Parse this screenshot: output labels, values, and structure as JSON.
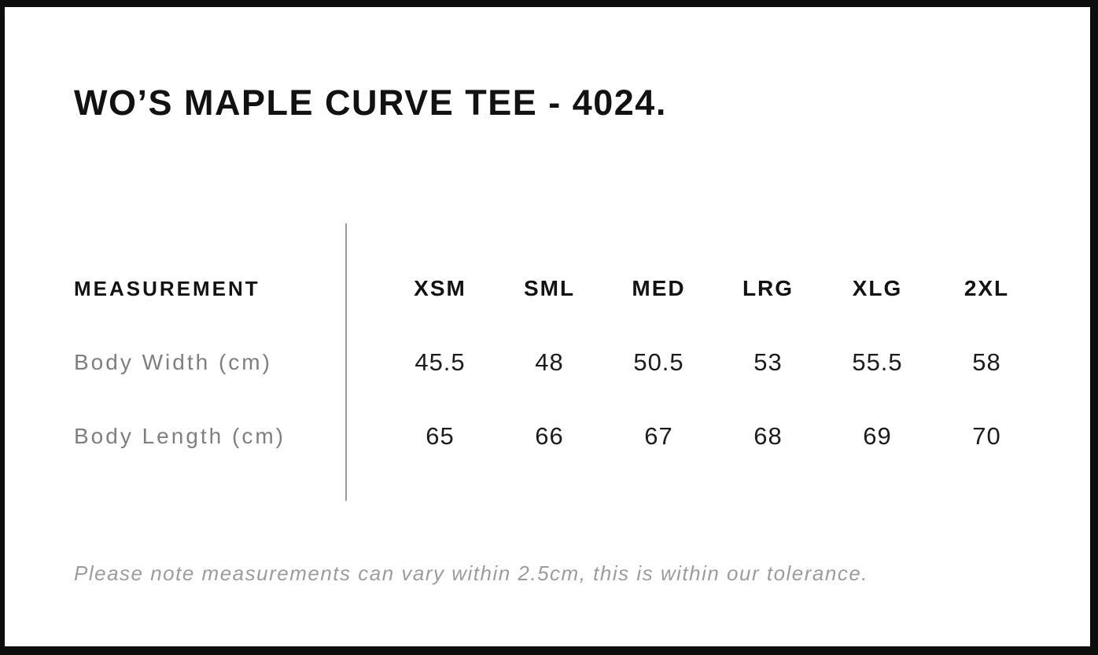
{
  "page": {
    "title": "WO’S MAPLE CURVE TEE - 4024.",
    "note": "Please note measurements can vary within 2.5cm, this is within our tolerance."
  },
  "size_chart": {
    "header_label": "MEASUREMENT",
    "sizes": [
      "XSM",
      "SML",
      "MED",
      "LRG",
      "XLG",
      "2XL"
    ],
    "rows": [
      {
        "label": "Body Width (cm)",
        "values": [
          "45.5",
          "48",
          "50.5",
          "53",
          "55.5",
          "58"
        ]
      },
      {
        "label": "Body Length (cm)",
        "values": [
          "65",
          "66",
          "67",
          "68",
          "69",
          "70"
        ]
      }
    ],
    "tolerance_cm": "2.5"
  },
  "colors": {
    "border_black": "#0d0d0d",
    "text_primary": "#131313",
    "label_gray": "#7f7f7f",
    "note_gray": "#9c9c9c",
    "divider_gray": "#9a9a9a",
    "background": "#ffffff"
  }
}
